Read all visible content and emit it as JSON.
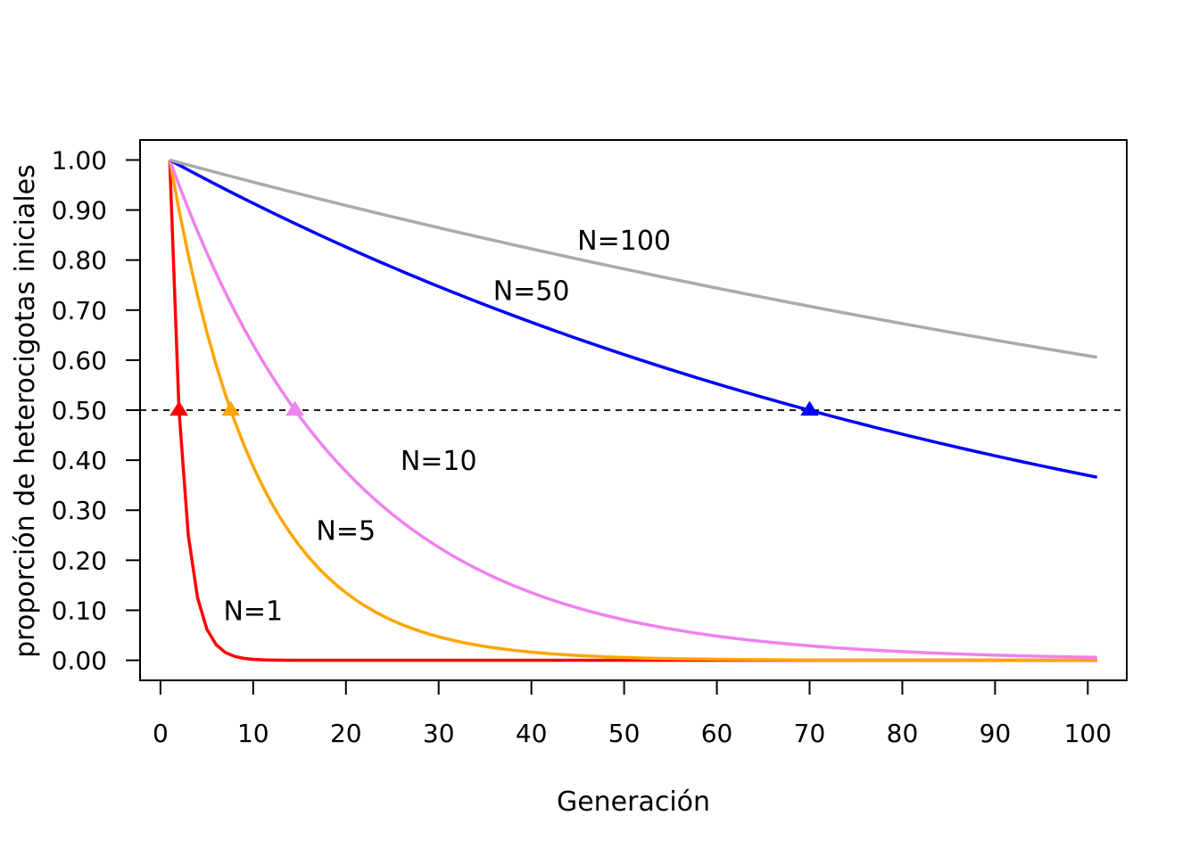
{
  "chart_data": {
    "type": "line",
    "title": "",
    "xlabel": "Generación",
    "ylabel": "proporción de heterocigotas iniciales",
    "xlim": [
      -2.2,
      104.2
    ],
    "ylim": [
      -0.04,
      1.04
    ],
    "x_ticks": [
      0,
      10,
      20,
      30,
      40,
      50,
      60,
      70,
      80,
      90,
      100
    ],
    "y_ticks": [
      0,
      0.1,
      0.2,
      0.3,
      0.4,
      0.5,
      0.6,
      0.7,
      0.8,
      0.9,
      1.0
    ],
    "x_tick_labels": [
      "0",
      "10",
      "20",
      "30",
      "40",
      "50",
      "60",
      "70",
      "80",
      "90",
      "100"
    ],
    "y_tick_labels": [
      "0.00",
      "0.10",
      "0.20",
      "0.30",
      "0.40",
      "0.50",
      "0.60",
      "0.70",
      "0.80",
      "0.90",
      "1.00"
    ],
    "x_start": 1,
    "x_end": 101,
    "reference_line": {
      "y": 0.5,
      "style": "dashed",
      "color": "#000000"
    },
    "grid": false,
    "legend": "none",
    "series": [
      {
        "name": "N=1",
        "N": 1,
        "color": "#ff0000",
        "half_point": {
          "x": 2,
          "y": 0.5
        },
        "label_pos": [
          10,
          0.1
        ]
      },
      {
        "name": "N=5",
        "N": 5,
        "color": "#ffa500",
        "half_point": {
          "x": 7.58,
          "y": 0.5
        },
        "label_pos": [
          20,
          0.26
        ]
      },
      {
        "name": "N=10",
        "N": 10,
        "color": "#ee82ee",
        "half_point": {
          "x": 14.5,
          "y": 0.5
        },
        "label_pos": [
          30,
          0.4
        ]
      },
      {
        "name": "N=50",
        "N": 50,
        "color": "#0000ff",
        "half_point": {
          "x": 70,
          "y": 0.5
        },
        "label_pos": [
          40,
          0.74
        ]
      },
      {
        "name": "N=100",
        "N": 100,
        "color": "#aaaaaa",
        "half_point": null,
        "label_pos": [
          50,
          0.84
        ]
      }
    ]
  }
}
